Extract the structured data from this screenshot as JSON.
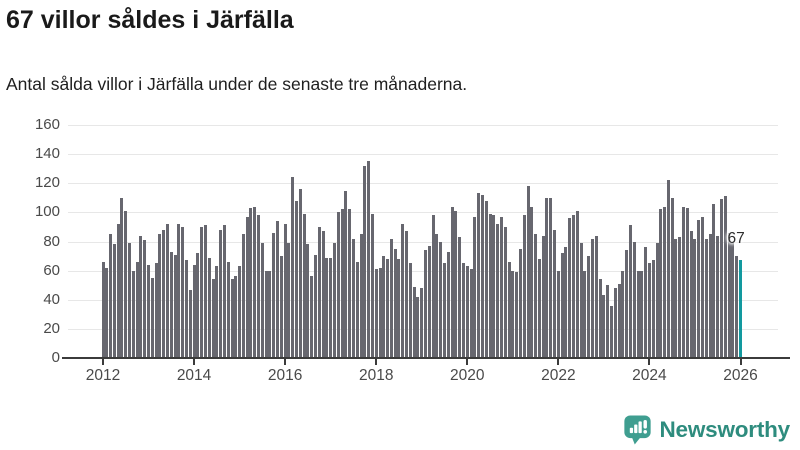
{
  "header": {
    "title": "67 villor såldes i Järfälla",
    "subtitle": "Antal sålda villor i Järfälla under de senaste tre månaderna."
  },
  "chart_data": {
    "type": "bar",
    "title": "67 villor såldes i Järfälla",
    "subtitle": "Antal sålda villor i Järfälla under de senaste tre månaderna.",
    "x_unit": "month",
    "x_start": "2012-01",
    "x_end": "2026-01",
    "x_tick_labels": [
      "2012",
      "2014",
      "2016",
      "2018",
      "2020",
      "2022",
      "2024",
      "2026"
    ],
    "y_ticks": [
      0,
      20,
      40,
      60,
      80,
      100,
      120,
      140,
      160
    ],
    "ylim": [
      0,
      160
    ],
    "grid": true,
    "bar_color": "#67676f",
    "values": [
      66,
      62,
      85,
      78,
      92,
      110,
      101,
      79,
      60,
      66,
      84,
      81,
      64,
      55,
      65,
      85,
      88,
      92,
      73,
      71,
      92,
      90,
      67,
      47,
      64,
      72,
      90,
      91,
      69,
      54,
      63,
      88,
      91,
      66,
      54,
      56,
      63,
      85,
      97,
      103,
      104,
      98,
      79,
      60,
      60,
      86,
      94,
      70,
      92,
      79,
      124,
      108,
      116,
      99,
      78,
      56,
      71,
      90,
      87,
      69,
      69,
      79,
      100,
      102,
      115,
      102,
      82,
      66,
      85,
      132,
      135,
      99,
      61,
      62,
      70,
      68,
      82,
      75,
      68,
      92,
      87,
      65,
      49,
      42,
      48,
      74,
      77,
      98,
      85,
      80,
      65,
      73,
      104,
      101,
      83,
      65,
      63,
      61,
      97,
      113,
      112,
      108,
      99,
      98,
      92,
      97,
      90,
      66,
      60,
      59,
      75,
      98,
      118,
      104,
      85,
      68,
      84,
      110,
      110,
      88,
      60,
      72,
      76,
      96,
      98,
      101,
      79,
      60,
      70,
      82,
      84,
      54,
      43,
      50,
      36,
      48,
      51,
      60,
      74,
      91,
      80,
      60,
      60,
      76,
      65,
      67,
      79,
      102,
      104,
      122,
      110,
      82,
      83,
      104,
      103,
      87,
      82,
      95,
      97,
      82,
      85,
      106,
      84,
      109,
      111,
      86,
      80,
      70,
      67
    ],
    "highlight": {
      "index": 168,
      "value": 67,
      "label": "67",
      "color": "#12999f"
    }
  },
  "footer": {
    "brand": "Newsworthy",
    "brand_color": "#2e8c7e",
    "icon": "newsworthy-bubble-barchart-icon",
    "icon_color": "#3f9e90"
  }
}
